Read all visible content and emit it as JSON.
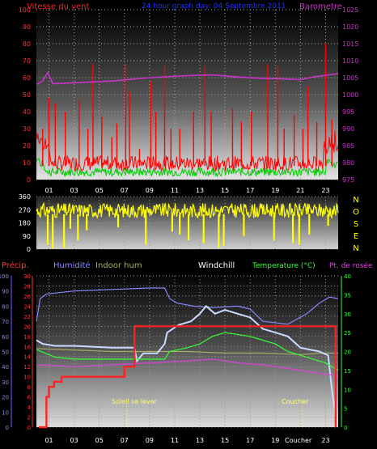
{
  "header": {
    "wind_title": "Vitesse du vent",
    "period_title": "24 hour graph day: 04 Septembre 2011",
    "baro_title": "Barometre"
  },
  "compass_letters": [
    "N",
    "O",
    "S",
    "E",
    "N"
  ],
  "bottom_labels": {
    "precip": "Précip.",
    "humidity": "Humidité",
    "indoor_hum": "Indoor hum",
    "windchill": "Windchill",
    "temperature": "Temperature (°C)",
    "dewpoint": "Pt. de rosée",
    "sunrise": "Soleil se lever",
    "sunset": "Coucher",
    "sunset_axis": "Coucher"
  },
  "colors": {
    "wind": "#ff0000",
    "gust_avg": "#00cc00",
    "barometer": "#cc33cc",
    "direction": "#ffff00",
    "precip_axis": "#ff3333",
    "humidity": "#8888ff",
    "indoor_hum": "#aaaa66",
    "windchill": "#ffffff",
    "temperature": "#33ff33",
    "dewpoint": "#dd44dd",
    "sun": "#ffff66"
  },
  "chart_data": [
    {
      "type": "line",
      "name": "wind",
      "x_ticks": [
        "01",
        "03",
        "05",
        "07",
        "09",
        "11",
        "13",
        "15",
        "17",
        "19",
        "21",
        "23"
      ],
      "y_left_ticks": [
        0,
        10,
        20,
        30,
        40,
        50,
        60,
        70,
        80,
        90,
        100
      ],
      "y_left_range": [
        0,
        100
      ],
      "y_right_ticks": [
        975,
        980,
        985,
        990,
        995,
        1000,
        1005,
        1010,
        1015,
        1020,
        1025
      ],
      "y_right_range": [
        975,
        1025
      ],
      "spikes": [
        {
          "h": 0.5,
          "v": 30
        },
        {
          "h": 1.0,
          "v": 48
        },
        {
          "h": 1.5,
          "v": 45
        },
        {
          "h": 2.3,
          "v": 40
        },
        {
          "h": 3.4,
          "v": 47
        },
        {
          "h": 4.1,
          "v": 30
        },
        {
          "h": 4.5,
          "v": 68
        },
        {
          "h": 5.2,
          "v": 37
        },
        {
          "h": 6.0,
          "v": 25
        },
        {
          "h": 6.4,
          "v": 33
        },
        {
          "h": 7.1,
          "v": 68
        },
        {
          "h": 7.4,
          "v": 52
        },
        {
          "h": 8.2,
          "v": 18
        },
        {
          "h": 9.1,
          "v": 58
        },
        {
          "h": 9.5,
          "v": 40
        },
        {
          "h": 10.2,
          "v": 67
        },
        {
          "h": 10.7,
          "v": 30
        },
        {
          "h": 11.4,
          "v": 30
        },
        {
          "h": 12.5,
          "v": 40
        },
        {
          "h": 13.4,
          "v": 67
        },
        {
          "h": 13.9,
          "v": 40
        },
        {
          "h": 15.6,
          "v": 42
        },
        {
          "h": 16.3,
          "v": 34
        },
        {
          "h": 17.1,
          "v": 40
        },
        {
          "h": 18.4,
          "v": 68
        },
        {
          "h": 19.2,
          "v": 67
        },
        {
          "h": 19.7,
          "v": 30
        },
        {
          "h": 20.5,
          "v": 38
        },
        {
          "h": 21.2,
          "v": 30
        },
        {
          "h": 21.6,
          "v": 55
        },
        {
          "h": 22.3,
          "v": 34
        },
        {
          "h": 23.0,
          "v": 80
        },
        {
          "h": 23.5,
          "v": 35
        }
      ],
      "barometer": [
        {
          "h": 0.0,
          "v": 1003
        },
        {
          "h": 0.5,
          "v": 1004
        },
        {
          "h": 0.9,
          "v": 1006.5
        },
        {
          "h": 1.3,
          "v": 1003.2
        },
        {
          "h": 3,
          "v": 1003.5
        },
        {
          "h": 6,
          "v": 1004
        },
        {
          "h": 9,
          "v": 1005
        },
        {
          "h": 12,
          "v": 1005.6
        },
        {
          "h": 14,
          "v": 1005.8
        },
        {
          "h": 16,
          "v": 1005.2
        },
        {
          "h": 18,
          "v": 1004.8
        },
        {
          "h": 20,
          "v": 1004.6
        },
        {
          "h": 21,
          "v": 1004.4
        },
        {
          "h": 22,
          "v": 1005.2
        },
        {
          "h": 24,
          "v": 1006.2
        }
      ]
    },
    {
      "type": "line",
      "name": "wind_direction",
      "y_ticks": [
        0,
        90,
        180,
        270,
        360
      ],
      "y_range": [
        0,
        360
      ],
      "drops": [
        {
          "h": 0.9,
          "v": 30
        },
        {
          "h": 1.3,
          "v": 5
        },
        {
          "h": 2.2,
          "v": 10
        },
        {
          "h": 2.7,
          "v": 140
        },
        {
          "h": 3.3,
          "v": 60
        },
        {
          "h": 4.0,
          "v": 130
        },
        {
          "h": 6.5,
          "v": 150
        },
        {
          "h": 8.7,
          "v": 30
        },
        {
          "h": 10.8,
          "v": 120
        },
        {
          "h": 11.4,
          "v": 100
        },
        {
          "h": 12.1,
          "v": 60
        },
        {
          "h": 13.3,
          "v": 40
        },
        {
          "h": 14.5,
          "v": 10
        },
        {
          "h": 14.9,
          "v": 20
        },
        {
          "h": 16.5,
          "v": 90
        },
        {
          "h": 18.9,
          "v": 60
        },
        {
          "h": 20.4,
          "v": 40
        },
        {
          "h": 20.9,
          "v": 30
        },
        {
          "h": 21.7,
          "v": 100
        },
        {
          "h": 23.2,
          "v": 160
        }
      ]
    },
    {
      "type": "line",
      "name": "climate",
      "x_ticks": [
        "01",
        "03",
        "05",
        "07",
        "09",
        "11",
        "13",
        "15",
        "17",
        "19",
        "21",
        "23"
      ],
      "y_humidity_ticks": [
        0,
        10,
        20,
        30,
        40,
        50,
        60,
        70,
        80,
        90,
        100
      ],
      "y_precip_ticks": [
        0,
        2,
        4,
        6,
        8,
        10,
        12,
        14,
        16,
        18,
        20,
        22,
        24,
        26,
        28,
        30
      ],
      "y_temp_ticks": [
        0,
        5,
        10,
        15,
        20,
        25,
        30,
        35,
        40
      ],
      "sunrise_hour": 7.2,
      "sunset_hour": 21.1,
      "series": [
        {
          "name": "Humidité",
          "axis": "humidity",
          "points": [
            {
              "h": 0,
              "v": 70
            },
            {
              "h": 0.3,
              "v": 85
            },
            {
              "h": 0.8,
              "v": 88
            },
            {
              "h": 3,
              "v": 90
            },
            {
              "h": 6,
              "v": 91
            },
            {
              "h": 9,
              "v": 92
            },
            {
              "h": 10.2,
              "v": 92
            },
            {
              "h": 10.6,
              "v": 85
            },
            {
              "h": 11.2,
              "v": 82
            },
            {
              "h": 12.5,
              "v": 80
            },
            {
              "h": 14,
              "v": 79
            },
            {
              "h": 16,
              "v": 80
            },
            {
              "h": 17,
              "v": 78
            },
            {
              "h": 18,
              "v": 70
            },
            {
              "h": 20,
              "v": 68
            },
            {
              "h": 21.5,
              "v": 75
            },
            {
              "h": 22.5,
              "v": 82
            },
            {
              "h": 23.3,
              "v": 86
            },
            {
              "h": 24,
              "v": 85
            }
          ]
        },
        {
          "name": "Indoor hum",
          "axis": "humidity",
          "points": [
            {
              "h": 0,
              "v": 52
            },
            {
              "h": 3,
              "v": 51
            },
            {
              "h": 6,
              "v": 50
            },
            {
              "h": 9,
              "v": 50
            },
            {
              "h": 12,
              "v": 50
            },
            {
              "h": 15,
              "v": 49
            },
            {
              "h": 18,
              "v": 49
            },
            {
              "h": 21,
              "v": 48
            },
            {
              "h": 23,
              "v": 49
            },
            {
              "h": 24,
              "v": 49
            }
          ]
        },
        {
          "name": "Windchill",
          "axis": "temp",
          "points": [
            {
              "h": 0,
              "v": 23
            },
            {
              "h": 0.5,
              "v": 22
            },
            {
              "h": 1.5,
              "v": 21.5
            },
            {
              "h": 3,
              "v": 21.5
            },
            {
              "h": 6,
              "v": 21
            },
            {
              "h": 7.8,
              "v": 21
            },
            {
              "h": 8,
              "v": 17.5
            },
            {
              "h": 8.5,
              "v": 19.5
            },
            {
              "h": 9.6,
              "v": 19.5
            },
            {
              "h": 10.2,
              "v": 22
            },
            {
              "h": 10.4,
              "v": 25
            },
            {
              "h": 11.3,
              "v": 27
            },
            {
              "h": 12.3,
              "v": 28
            },
            {
              "h": 13,
              "v": 30
            },
            {
              "h": 13.5,
              "v": 32
            },
            {
              "h": 14.2,
              "v": 30
            },
            {
              "h": 15,
              "v": 31
            },
            {
              "h": 16,
              "v": 30
            },
            {
              "h": 17,
              "v": 29
            },
            {
              "h": 18,
              "v": 26
            },
            {
              "h": 19,
              "v": 25
            },
            {
              "h": 20,
              "v": 24
            },
            {
              "h": 21,
              "v": 21
            },
            {
              "h": 22.5,
              "v": 20
            },
            {
              "h": 23.2,
              "v": 19
            },
            {
              "h": 23.5,
              "v": 10
            },
            {
              "h": 23.8,
              "v": 3
            }
          ]
        },
        {
          "name": "Temperature (°C)",
          "axis": "temp",
          "points": [
            {
              "h": 0,
              "v": 20.5
            },
            {
              "h": 1.5,
              "v": 18.5
            },
            {
              "h": 3,
              "v": 18
            },
            {
              "h": 6,
              "v": 18
            },
            {
              "h": 9,
              "v": 18
            },
            {
              "h": 10.2,
              "v": 18
            },
            {
              "h": 10.6,
              "v": 20
            },
            {
              "h": 12,
              "v": 21
            },
            {
              "h": 13,
              "v": 22
            },
            {
              "h": 14,
              "v": 24
            },
            {
              "h": 15,
              "v": 25
            },
            {
              "h": 16,
              "v": 24.5
            },
            {
              "h": 17,
              "v": 24
            },
            {
              "h": 18,
              "v": 23
            },
            {
              "h": 19,
              "v": 22
            },
            {
              "h": 20,
              "v": 20
            },
            {
              "h": 21,
              "v": 19
            },
            {
              "h": 22,
              "v": 18
            },
            {
              "h": 23,
              "v": 17
            },
            {
              "h": 24,
              "v": 15
            }
          ]
        },
        {
          "name": "Pt. de rosée",
          "axis": "temp",
          "points": [
            {
              "h": 0,
              "v": 16.5
            },
            {
              "h": 3,
              "v": 16
            },
            {
              "h": 6,
              "v": 16.5
            },
            {
              "h": 9,
              "v": 17
            },
            {
              "h": 12,
              "v": 17.5
            },
            {
              "h": 14,
              "v": 18
            },
            {
              "h": 15,
              "v": 17.5
            },
            {
              "h": 16,
              "v": 17
            },
            {
              "h": 18,
              "v": 16.5
            },
            {
              "h": 20,
              "v": 15.5
            },
            {
              "h": 22,
              "v": 14.5
            },
            {
              "h": 24,
              "v": 13.5
            }
          ]
        },
        {
          "name": "Précip.",
          "axis": "precip",
          "points": [
            {
              "h": 0.2,
              "v": 0
            },
            {
              "h": 0.6,
              "v": 0
            },
            {
              "h": 0.8,
              "v": 6
            },
            {
              "h": 1.0,
              "v": 8
            },
            {
              "h": 1.4,
              "v": 9
            },
            {
              "h": 2,
              "v": 10
            },
            {
              "h": 6.5,
              "v": 10
            },
            {
              "h": 7.0,
              "v": 12
            },
            {
              "h": 7.6,
              "v": 12
            },
            {
              "h": 7.8,
              "v": 20
            },
            {
              "h": 23.6,
              "v": 20
            },
            {
              "h": 23.8,
              "v": 0
            }
          ]
        }
      ]
    }
  ]
}
